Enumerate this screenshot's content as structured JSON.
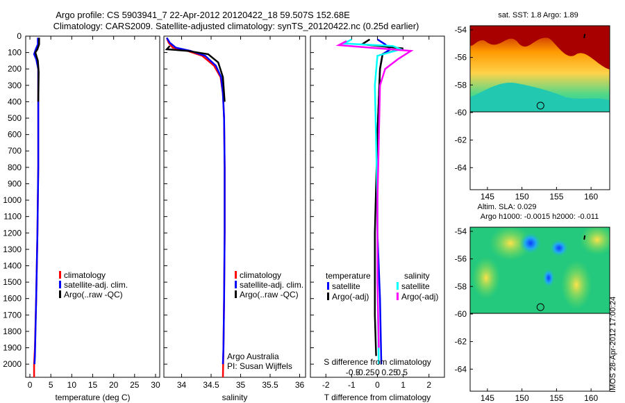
{
  "titles": {
    "line1": "Argo profile: CS 5903941_7 22-Apr-2012 20120422_18 59.507S 152.68E",
    "line2": "Climatology: CARS2009. Satellite-adjusted climatology: synTS_20120422.nc (0.25d earlier)"
  },
  "colors": {
    "clim": "#ff0000",
    "sat": "#0000ff",
    "argo": "#000000",
    "sal_sat": "#00ffff",
    "sal_argo": "#ff00ff"
  },
  "chart_data": [
    {
      "type": "line",
      "name": "temperature-panel",
      "xlabel": "temperature (deg C)",
      "ylabel": "",
      "xlim": [
        -1,
        31
      ],
      "ylim": [
        0,
        2080
      ],
      "xticks": [
        0,
        5,
        10,
        15,
        20,
        25,
        30
      ],
      "yticks": [
        0,
        100,
        200,
        300,
        400,
        500,
        600,
        700,
        800,
        900,
        1000,
        1100,
        1200,
        1300,
        1400,
        1500,
        1600,
        1700,
        1800,
        1900,
        2000
      ],
      "legend": {
        "items": [
          "climatology",
          "satellite-adj. clim.",
          "Argo(..raw -QC)"
        ],
        "position": "lower-right"
      },
      "series": [
        {
          "name": "climatology",
          "color": "#ff0000",
          "points": [
            [
              2.1,
              10
            ],
            [
              2.1,
              50
            ],
            [
              1.6,
              80
            ],
            [
              1.2,
              100
            ],
            [
              1.6,
              130
            ],
            [
              2.0,
              200
            ],
            [
              2.0,
              400
            ],
            [
              2.0,
              800
            ],
            [
              1.8,
              1200
            ],
            [
              1.5,
              1600
            ],
            [
              1.2,
              1900
            ],
            [
              1.0,
              2000
            ],
            [
              1.0,
              2080
            ]
          ]
        },
        {
          "name": "satellite-adj. clim.",
          "color": "#0000ff",
          "points": [
            [
              1.9,
              10
            ],
            [
              1.9,
              50
            ],
            [
              1.4,
              80
            ],
            [
              1.0,
              110
            ],
            [
              1.5,
              140
            ],
            [
              2.0,
              200
            ],
            [
              2.0,
              400
            ],
            [
              2.0,
              800
            ],
            [
              1.8,
              1200
            ],
            [
              1.5,
              1600
            ],
            [
              1.2,
              1950
            ],
            [
              1.1,
              2000
            ]
          ]
        },
        {
          "name": "Argo(..raw -QC)",
          "color": "#000000",
          "points": [
            [
              2.2,
              10
            ],
            [
              2.2,
              50
            ],
            [
              1.8,
              80
            ],
            [
              1.3,
              100
            ],
            [
              1.9,
              150
            ],
            [
              2.1,
              220
            ],
            [
              2.0,
              400
            ]
          ]
        }
      ]
    },
    {
      "type": "line",
      "name": "salinity-panel",
      "xlabel": "salinity",
      "xlim": [
        33.7,
        36.1
      ],
      "ylim": [
        0,
        2080
      ],
      "xticks": [
        34,
        34.5,
        35,
        35.5,
        36
      ],
      "legend": {
        "items": [
          "climatology",
          "satellite-adj. clim.",
          "Argo(..raw -QC)"
        ],
        "position": "lower-right"
      },
      "annotations": [
        "Argo Australia",
        "PI: Susan Wijffels"
      ],
      "series": [
        {
          "name": "climatology",
          "color": "#ff0000",
          "points": [
            [
              33.75,
              10
            ],
            [
              33.78,
              40
            ],
            [
              33.85,
              70
            ],
            [
              34.1,
              90
            ],
            [
              34.35,
              120
            ],
            [
              34.55,
              180
            ],
            [
              34.66,
              250
            ],
            [
              34.7,
              350
            ],
            [
              34.72,
              500
            ],
            [
              34.73,
              800
            ],
            [
              34.73,
              1200
            ],
            [
              34.72,
              1600
            ],
            [
              34.71,
              1900
            ],
            [
              34.7,
              2080
            ]
          ]
        },
        {
          "name": "satellite-adj. clim.",
          "color": "#0000ff",
          "points": [
            [
              33.75,
              10
            ],
            [
              33.8,
              40
            ],
            [
              33.9,
              70
            ],
            [
              34.15,
              90
            ],
            [
              34.4,
              120
            ],
            [
              34.58,
              180
            ],
            [
              34.67,
              250
            ],
            [
              34.7,
              350
            ],
            [
              34.72,
              500
            ],
            [
              34.73,
              800
            ],
            [
              34.73,
              1200
            ],
            [
              34.72,
              1600
            ],
            [
              34.71,
              1900
            ],
            [
              34.7,
              2000
            ]
          ]
        },
        {
          "name": "Argo(..raw -QC)",
          "color": "#000000",
          "points": [
            [
              33.8,
              60
            ],
            [
              33.75,
              80
            ],
            [
              34.1,
              90
            ],
            [
              34.45,
              110
            ],
            [
              34.62,
              160
            ],
            [
              34.7,
              250
            ],
            [
              34.73,
              400
            ]
          ]
        }
      ]
    },
    {
      "type": "line",
      "name": "difference-panel",
      "xlabel": "T difference from climatology",
      "xlabel_top": "S difference from climatology",
      "xlim": [
        -2.6,
        2.6
      ],
      "ylim": [
        0,
        2080
      ],
      "xticks": [
        -2,
        -1,
        0,
        1,
        2
      ],
      "xticks_top": [
        -0.5,
        -0.25,
        0,
        0.25,
        0.5
      ],
      "xticks_top_labels": [
        "-0.5",
        "-0.25",
        "0",
        "0.25",
        "0.5"
      ],
      "legend": {
        "temperature_title": "temperature",
        "salinity_title": "salinity",
        "items": [
          "satellite",
          "Argo(-adj)",
          "satellite",
          "Argo(-adj)"
        ],
        "position": "lower-center"
      },
      "series": [
        {
          "name": "temperature satellite",
          "color": "#0000ff",
          "points": [
            [
              0.0,
              20
            ],
            [
              0.3,
              50
            ],
            [
              0.5,
              80
            ],
            [
              0.2,
              110
            ],
            [
              0.1,
              200
            ],
            [
              0.0,
              600
            ],
            [
              0.0,
              1200
            ],
            [
              0.1,
              1600
            ],
            [
              0.15,
              2000
            ]
          ]
        },
        {
          "name": "temperature Argo(-adj)",
          "color": "#000000",
          "points": [
            [
              -0.3,
              20
            ],
            [
              -0.6,
              50
            ],
            [
              1.0,
              75
            ],
            [
              0.2,
              110
            ],
            [
              0.1,
              200
            ],
            [
              0.0,
              600
            ],
            [
              -0.1,
              1200
            ],
            [
              -0.1,
              1700
            ],
            [
              -0.05,
              1950
            ]
          ]
        },
        {
          "name": "salinity satellite",
          "color": "#00ffff",
          "points": [
            [
              -1.0,
              20
            ],
            [
              -1.3,
              45
            ],
            [
              0.6,
              60
            ],
            [
              0.9,
              80
            ],
            [
              0.0,
              120
            ],
            [
              -0.1,
              300
            ],
            [
              0.0,
              1000
            ],
            [
              0.0,
              1500
            ],
            [
              0.05,
              2000
            ]
          ]
        },
        {
          "name": "salinity Argo(-adj)",
          "color": "#ff00ff",
          "points": [
            [
              -1.2,
              30
            ],
            [
              -1.5,
              55
            ],
            [
              1.3,
              90
            ],
            [
              0.8,
              140
            ],
            [
              0.3,
              200
            ],
            [
              0.1,
              300
            ],
            [
              0.0,
              1000
            ],
            [
              0.0,
              1500
            ],
            [
              0.05,
              1900
            ]
          ]
        }
      ]
    },
    {
      "type": "heatmap",
      "name": "sst-map",
      "title": "sat. SST: 1.8 Argo: 1.89",
      "xlim": [
        142.5,
        162.7
      ],
      "ylim": [
        -65.6,
        -53.7
      ],
      "xticks": [
        145,
        150,
        155,
        160
      ],
      "yticks": [
        -54,
        -56,
        -58,
        -60,
        -62,
        -64
      ],
      "data_extent_lat": [
        -60.1,
        -53.7
      ],
      "marker": {
        "lon": 152.68,
        "lat": -59.5
      }
    },
    {
      "type": "heatmap",
      "name": "sla-map",
      "title": "Altim. SLA: 0.029",
      "subtitle": "Argo h1000: -0.0015 h2000: -0.011",
      "xlim": [
        142.5,
        162.7
      ],
      "ylim": [
        -65.6,
        -53.7
      ],
      "xticks": [
        145,
        150,
        155,
        160
      ],
      "yticks": [
        -54,
        -56,
        -58,
        -60,
        -62,
        -64
      ],
      "data_extent_lat": [
        -60.1,
        -53.7
      ],
      "marker": {
        "lon": 152.68,
        "lat": -59.5
      }
    }
  ],
  "watermark": "IMOS 28-Apr-2012 17:00:24"
}
